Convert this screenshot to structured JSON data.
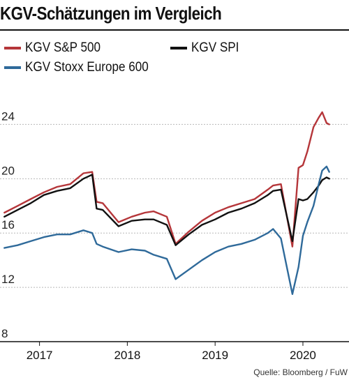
{
  "title": "KGV-Schätzungen im Vergleich",
  "source": "Quelle: Bloomberg / FuW",
  "colors": {
    "sp500": "#b5363a",
    "spi": "#111111",
    "stoxx": "#2f6a9a",
    "grid": "#b8b8b8"
  },
  "legend": [
    {
      "label": "KGV S&P 500",
      "color": "#b5363a"
    },
    {
      "label": "KGV SPI",
      "color": "#111111"
    },
    {
      "label": "KGV Stoxx Europe 600",
      "color": "#2f6a9a"
    }
  ],
  "chart_data": {
    "type": "line",
    "title": "KGV-Schätzungen im Vergleich",
    "xlabel": "",
    "ylabel": "",
    "xlim": [
      2016.55,
      2020.35
    ],
    "ylim": [
      8,
      27
    ],
    "y_ticks": [
      8,
      12,
      16,
      20,
      24
    ],
    "x_ticks": [
      {
        "label": "2017",
        "value": 2017.0
      },
      {
        "label": "2018",
        "value": 2018.0
      },
      {
        "label": "2019",
        "value": 2019.0
      },
      {
        "label": "2020",
        "value": 2020.0
      }
    ],
    "grid": "horizontal",
    "legend_position": "top",
    "series": [
      {
        "name": "KGV S&P 500",
        "color": "#b5363a",
        "x": [
          2016.6,
          2016.75,
          2016.9,
          2017.05,
          2017.2,
          2017.35,
          2017.5,
          2017.6,
          2017.65,
          2017.72,
          2017.9,
          2018.05,
          2018.2,
          2018.3,
          2018.45,
          2018.55,
          2018.7,
          2018.85,
          2019.0,
          2019.15,
          2019.3,
          2019.45,
          2019.6,
          2019.66,
          2019.75,
          2019.88,
          2019.95,
          2020.0,
          2020.05,
          2020.12,
          2020.18,
          2020.22,
          2020.27,
          2020.3
        ],
        "y": [
          17.5,
          18.0,
          18.5,
          19.0,
          19.4,
          19.6,
          20.4,
          20.5,
          18.3,
          18.2,
          16.8,
          17.2,
          17.5,
          17.6,
          17.2,
          15.2,
          16.1,
          16.9,
          17.5,
          17.9,
          18.2,
          18.5,
          19.2,
          19.5,
          19.6,
          15.0,
          20.8,
          21.0,
          22.0,
          23.8,
          24.5,
          24.9,
          24.1,
          24.0
        ]
      },
      {
        "name": "KGV SPI",
        "color": "#111111",
        "x": [
          2016.6,
          2016.75,
          2016.9,
          2017.05,
          2017.2,
          2017.35,
          2017.5,
          2017.6,
          2017.65,
          2017.72,
          2017.9,
          2018.05,
          2018.2,
          2018.3,
          2018.45,
          2018.55,
          2018.7,
          2018.85,
          2019.0,
          2019.15,
          2019.3,
          2019.45,
          2019.6,
          2019.66,
          2019.75,
          2019.88,
          2019.95,
          2020.0,
          2020.05,
          2020.12,
          2020.18,
          2020.22,
          2020.27,
          2020.3
        ],
        "y": [
          17.2,
          17.7,
          18.2,
          18.8,
          19.1,
          19.3,
          20.0,
          20.3,
          17.8,
          17.7,
          16.5,
          16.9,
          17.0,
          17.0,
          16.6,
          15.1,
          15.9,
          16.6,
          17.0,
          17.5,
          17.8,
          18.2,
          18.8,
          19.1,
          19.2,
          15.4,
          18.5,
          18.4,
          18.5,
          19.0,
          19.5,
          19.9,
          20.1,
          20.0
        ]
      },
      {
        "name": "KGV Stoxx Europe 600",
        "color": "#2f6a9a",
        "x": [
          2016.6,
          2016.75,
          2016.9,
          2017.05,
          2017.2,
          2017.35,
          2017.5,
          2017.6,
          2017.65,
          2017.72,
          2017.9,
          2018.05,
          2018.2,
          2018.3,
          2018.45,
          2018.55,
          2018.7,
          2018.85,
          2019.0,
          2019.15,
          2019.3,
          2019.45,
          2019.6,
          2019.66,
          2019.75,
          2019.88,
          2019.95,
          2020.0,
          2020.05,
          2020.12,
          2020.18,
          2020.22,
          2020.27,
          2020.3
        ],
        "y": [
          14.9,
          15.1,
          15.4,
          15.7,
          15.9,
          15.9,
          16.2,
          16.0,
          15.2,
          15.0,
          14.6,
          14.8,
          14.7,
          14.4,
          14.1,
          12.6,
          13.3,
          14.0,
          14.6,
          15.0,
          15.2,
          15.5,
          16.0,
          16.3,
          15.6,
          11.5,
          13.5,
          15.8,
          16.8,
          18.0,
          19.6,
          20.6,
          20.9,
          20.5
        ]
      }
    ]
  }
}
